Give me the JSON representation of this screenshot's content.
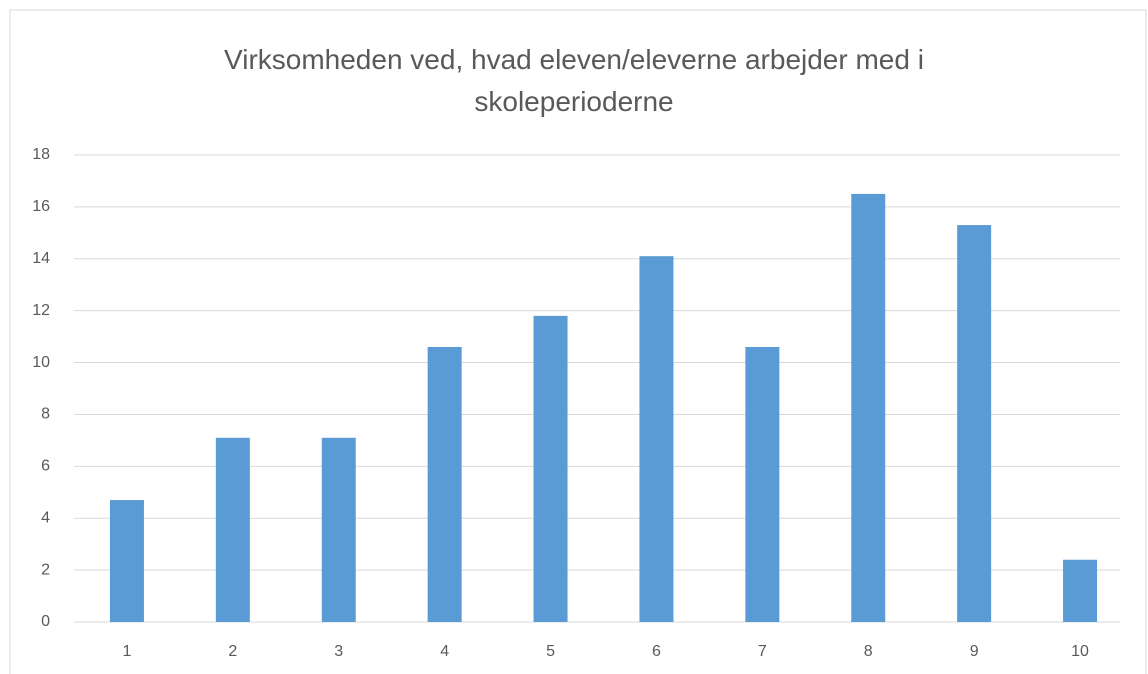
{
  "chart_data": {
    "type": "bar",
    "title": "Virksomheden ved, hvad eleven/eleverne arbejder med i skoleperioderne",
    "categories": [
      "1",
      "2",
      "3",
      "4",
      "5",
      "6",
      "7",
      "8",
      "9",
      "10"
    ],
    "values": [
      4.7,
      7.1,
      7.1,
      10.6,
      11.8,
      14.1,
      10.6,
      16.5,
      15.3,
      2.4
    ],
    "color": "#5b9bd5",
    "ylim": [
      0,
      18
    ],
    "yticks": [
      0,
      2,
      4,
      6,
      8,
      10,
      12,
      14,
      16,
      18
    ],
    "grid": true
  }
}
